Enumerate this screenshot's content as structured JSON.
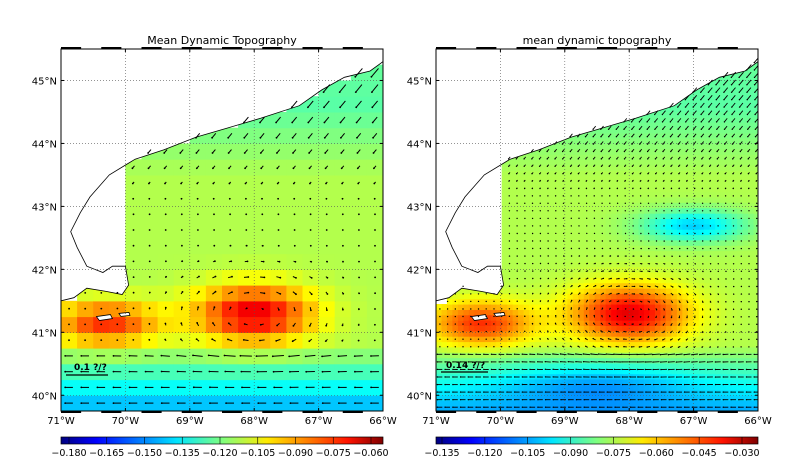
{
  "panels": [
    {
      "title": "Mean Dynamic Topography",
      "lat_labels": [
        "45°N",
        "44°N",
        "43°N",
        "42°N",
        "41°N",
        "40°N"
      ],
      "lon_labels": [
        "71°W",
        "70°W",
        "69°W",
        "68°W",
        "67°W",
        "66°W"
      ],
      "scale_label": "0.1 ?/?",
      "colorbar_ticks": [
        "−0.180",
        "−0.165",
        "−0.150",
        "−0.135",
        "−0.120",
        "−0.105",
        "−0.090",
        "−0.075",
        "−0.060"
      ]
    },
    {
      "title": "mean dynamic topography",
      "lat_labels": [
        "45°N",
        "44°N",
        "43°N",
        "42°N",
        "41°N",
        "40°N"
      ],
      "lon_labels": [
        "71°W",
        "70°W",
        "69°W",
        "68°W",
        "67°W",
        "66°W"
      ],
      "scale_label": "0.14 ?/?",
      "colorbar_ticks": [
        "−0.135",
        "−0.120",
        "−0.105",
        "−0.090",
        "−0.075",
        "−0.060",
        "−0.045",
        "−0.030"
      ]
    }
  ],
  "colormap": "jet",
  "map_extent": {
    "lon_min": -71,
    "lon_max": -66,
    "lat_min": 39.75,
    "lat_max": 45.5
  }
}
